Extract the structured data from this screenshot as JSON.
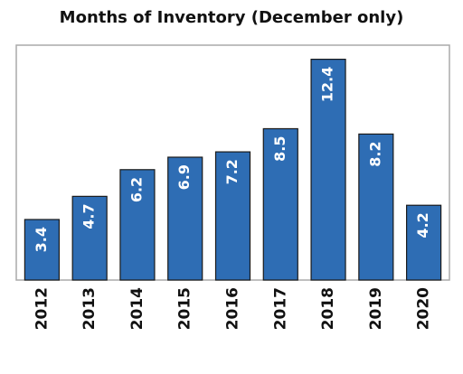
{
  "chart_data": {
    "type": "bar",
    "title": "Months of Inventory (December only)",
    "categories": [
      "2012",
      "2013",
      "2014",
      "2015",
      "2016",
      "2017",
      "2018",
      "2019",
      "2020"
    ],
    "values": [
      3.4,
      4.7,
      6.2,
      6.9,
      7.2,
      8.5,
      12.4,
      8.2,
      4.2
    ],
    "color": "#2e6db4"
  }
}
